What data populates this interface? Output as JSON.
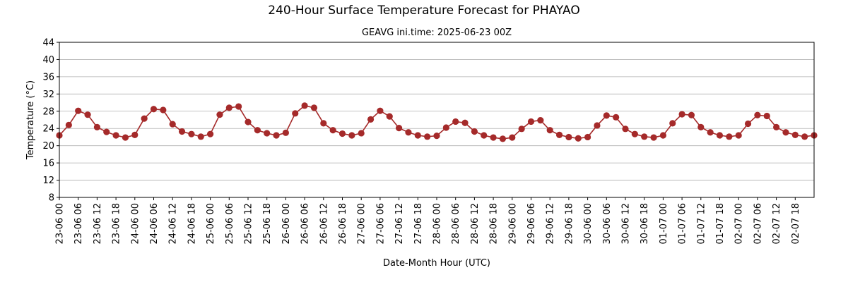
{
  "chart_data": {
    "type": "line",
    "title": "240-Hour Surface Temperature Forecast for PHAYAO",
    "subtitle": "GEAVG ini.time: 2025-06-23 00Z",
    "xlabel": "Date-Month Hour (UTC)",
    "ylabel": "Temperature (°C)",
    "ylim": [
      8,
      44
    ],
    "yticks": [
      8,
      12,
      16,
      20,
      24,
      28,
      32,
      36,
      40,
      44
    ],
    "grid": "horizontal",
    "line_color": "#a52a2a",
    "x_tick_labels": [
      "23-06 00",
      "23-06 06",
      "23-06 12",
      "23-06 18",
      "24-06 00",
      "24-06 06",
      "24-06 12",
      "24-06 18",
      "25-06 00",
      "25-06 06",
      "25-06 12",
      "25-06 18",
      "26-06 00",
      "26-06 06",
      "26-06 12",
      "26-06 18",
      "27-06 00",
      "27-06 06",
      "27-06 12",
      "27-06 18",
      "28-06 00",
      "28-06 06",
      "28-06 12",
      "28-06 18",
      "29-06 00",
      "29-06 06",
      "29-06 12",
      "29-06 18",
      "30-06 00",
      "30-06 06",
      "30-06 12",
      "30-06 18",
      "01-07 00",
      "01-07 06",
      "01-07 12",
      "01-07 18",
      "02-07 00",
      "02-07 06",
      "02-07 12",
      "02-07 18"
    ],
    "x": [
      "23-06 00",
      "23-06 03",
      "23-06 06",
      "23-06 09",
      "23-06 12",
      "23-06 15",
      "23-06 18",
      "23-06 21",
      "24-06 00",
      "24-06 03",
      "24-06 06",
      "24-06 09",
      "24-06 12",
      "24-06 15",
      "24-06 18",
      "24-06 21",
      "25-06 00",
      "25-06 03",
      "25-06 06",
      "25-06 09",
      "25-06 12",
      "25-06 15",
      "25-06 18",
      "25-06 21",
      "26-06 00",
      "26-06 03",
      "26-06 06",
      "26-06 09",
      "26-06 12",
      "26-06 15",
      "26-06 18",
      "26-06 21",
      "27-06 00",
      "27-06 03",
      "27-06 06",
      "27-06 09",
      "27-06 12",
      "27-06 15",
      "27-06 18",
      "27-06 21",
      "28-06 00",
      "28-06 03",
      "28-06 06",
      "28-06 09",
      "28-06 12",
      "28-06 15",
      "28-06 18",
      "28-06 21",
      "29-06 00",
      "29-06 03",
      "29-06 06",
      "29-06 09",
      "29-06 12",
      "29-06 15",
      "29-06 18",
      "29-06 21",
      "30-06 00",
      "30-06 03",
      "30-06 06",
      "30-06 09",
      "30-06 12",
      "30-06 15",
      "30-06 18",
      "30-06 21",
      "01-07 00",
      "01-07 03",
      "01-07 06",
      "01-07 09",
      "01-07 12",
      "01-07 15",
      "01-07 18",
      "01-07 21",
      "02-07 00",
      "02-07 03",
      "02-07 06",
      "02-07 09",
      "02-07 12",
      "02-07 15",
      "02-07 18",
      "02-07 21",
      "03-07 00"
    ],
    "values": [
      22.4,
      24.8,
      28.1,
      27.2,
      24.3,
      23.2,
      22.4,
      21.9,
      22.5,
      26.3,
      28.5,
      28.3,
      25.0,
      23.3,
      22.7,
      22.1,
      22.7,
      27.2,
      28.8,
      29.1,
      25.5,
      23.6,
      22.9,
      22.4,
      23.0,
      27.5,
      29.3,
      28.8,
      25.2,
      23.6,
      22.8,
      22.4,
      22.9,
      26.1,
      28.1,
      26.8,
      24.1,
      23.1,
      22.4,
      22.1,
      22.3,
      24.2,
      25.6,
      25.3,
      23.3,
      22.4,
      21.9,
      21.6,
      21.9,
      23.9,
      25.6,
      25.9,
      23.6,
      22.5,
      22.0,
      21.7,
      22.0,
      24.7,
      27.0,
      26.6,
      23.9,
      22.7,
      22.1,
      21.9,
      22.4,
      25.2,
      27.3,
      27.1,
      24.3,
      23.1,
      22.4,
      22.1,
      22.4,
      25.1,
      27.1,
      26.9,
      24.3,
      23.1,
      22.5,
      22.1,
      22.4
    ]
  }
}
